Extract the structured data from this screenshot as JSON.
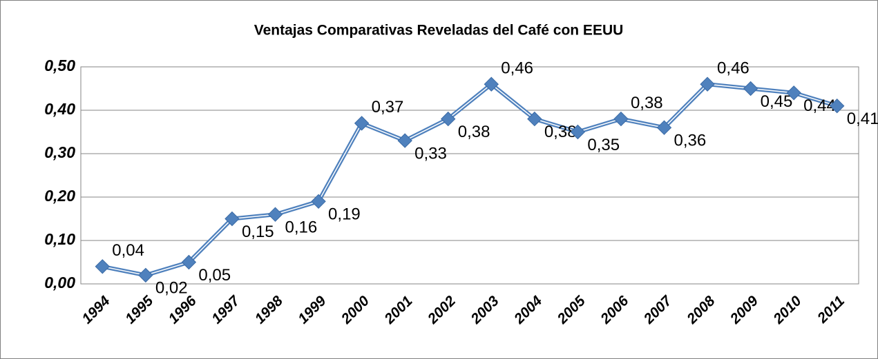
{
  "chart_data": {
    "type": "line",
    "title": "Ventajas Comparativas Reveladas del Café con EEUU",
    "categories": [
      "1994",
      "1995",
      "1996",
      "1997",
      "1998",
      "1999",
      "2000",
      "2001",
      "2002",
      "2003",
      "2004",
      "2005",
      "2006",
      "2007",
      "2008",
      "2009",
      "2010",
      "2011"
    ],
    "values": [
      0.04,
      0.02,
      0.05,
      0.15,
      0.16,
      0.19,
      0.37,
      0.33,
      0.38,
      0.46,
      0.38,
      0.35,
      0.38,
      0.36,
      0.46,
      0.45,
      0.44,
      0.41
    ],
    "value_labels": [
      "0,04",
      "0,02",
      "0,05",
      "0,15",
      "0,16",
      "0,19",
      "0,37",
      "0,33",
      "0,38",
      "0,46",
      "0,38",
      "0,35",
      "0,38",
      "0,36",
      "0,46",
      "0,45",
      "0,44",
      "0,41"
    ],
    "color": "#4f81bd",
    "ylim": [
      0,
      0.5
    ],
    "yticks": [
      {
        "value": 0,
        "label": "0,00"
      },
      {
        "value": 0.1,
        "label": "0,10"
      },
      {
        "value": 0.2,
        "label": "0,20"
      },
      {
        "value": 0.3,
        "label": "0,30"
      },
      {
        "value": 0.4,
        "label": "0,40"
      },
      {
        "value": 0.5,
        "label": "0,50"
      }
    ],
    "grid": true
  }
}
